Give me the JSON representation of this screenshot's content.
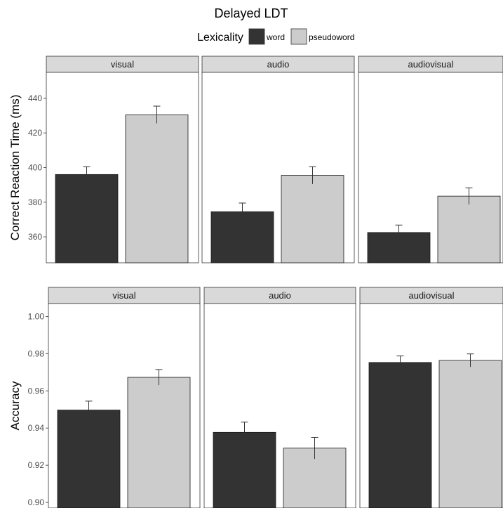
{
  "figure": {
    "title": "Delayed LDT",
    "legend": {
      "title": "Lexicality",
      "position": "top-center",
      "entries": [
        {
          "name": "word",
          "color": "#333333"
        },
        {
          "name": "pseudoword",
          "color": "#cccccc"
        }
      ]
    }
  },
  "chart_data": [
    {
      "type": "bar",
      "ylabel": "Correct Reaction Time (ms)",
      "ylim": [
        345,
        455
      ],
      "yticks": [
        360,
        380,
        400,
        420,
        440
      ],
      "ytick_labels": [
        "360",
        "380",
        "400",
        "420",
        "440"
      ],
      "grid": false,
      "facets": [
        {
          "label": "visual",
          "series": [
            {
              "name": "word",
              "value": 396,
              "error": 4.5
            },
            {
              "name": "pseudoword",
              "value": 430.5,
              "error": 5
            }
          ]
        },
        {
          "label": "audio",
          "series": [
            {
              "name": "word",
              "value": 374.5,
              "error": 5
            },
            {
              "name": "pseudoword",
              "value": 395.5,
              "error": 5
            }
          ]
        },
        {
          "label": "audiovisual",
          "series": [
            {
              "name": "word",
              "value": 362.5,
              "error": 4.3
            },
            {
              "name": "pseudoword",
              "value": 383.5,
              "error": 4.8
            }
          ]
        }
      ]
    },
    {
      "type": "bar",
      "ylabel": "Accuracy",
      "ylim": [
        0.897,
        1.007
      ],
      "yticks": [
        0.9,
        0.92,
        0.94,
        0.96,
        0.98,
        1.0
      ],
      "ytick_labels": [
        "0.90",
        "0.92",
        "0.94",
        "0.96",
        "0.98",
        "1.00"
      ],
      "grid": false,
      "facets": [
        {
          "label": "visual",
          "series": [
            {
              "name": "word",
              "value": 0.9497,
              "error": 0.0048
            },
            {
              "name": "pseudoword",
              "value": 0.9673,
              "error": 0.0042
            }
          ]
        },
        {
          "label": "audio",
          "series": [
            {
              "name": "word",
              "value": 0.9377,
              "error": 0.0055
            },
            {
              "name": "pseudoword",
              "value": 0.9292,
              "error": 0.0058
            }
          ]
        },
        {
          "label": "audiovisual",
          "series": [
            {
              "name": "word",
              "value": 0.9753,
              "error": 0.0035
            },
            {
              "name": "pseudoword",
              "value": 0.9764,
              "error": 0.0035
            }
          ]
        }
      ]
    }
  ]
}
